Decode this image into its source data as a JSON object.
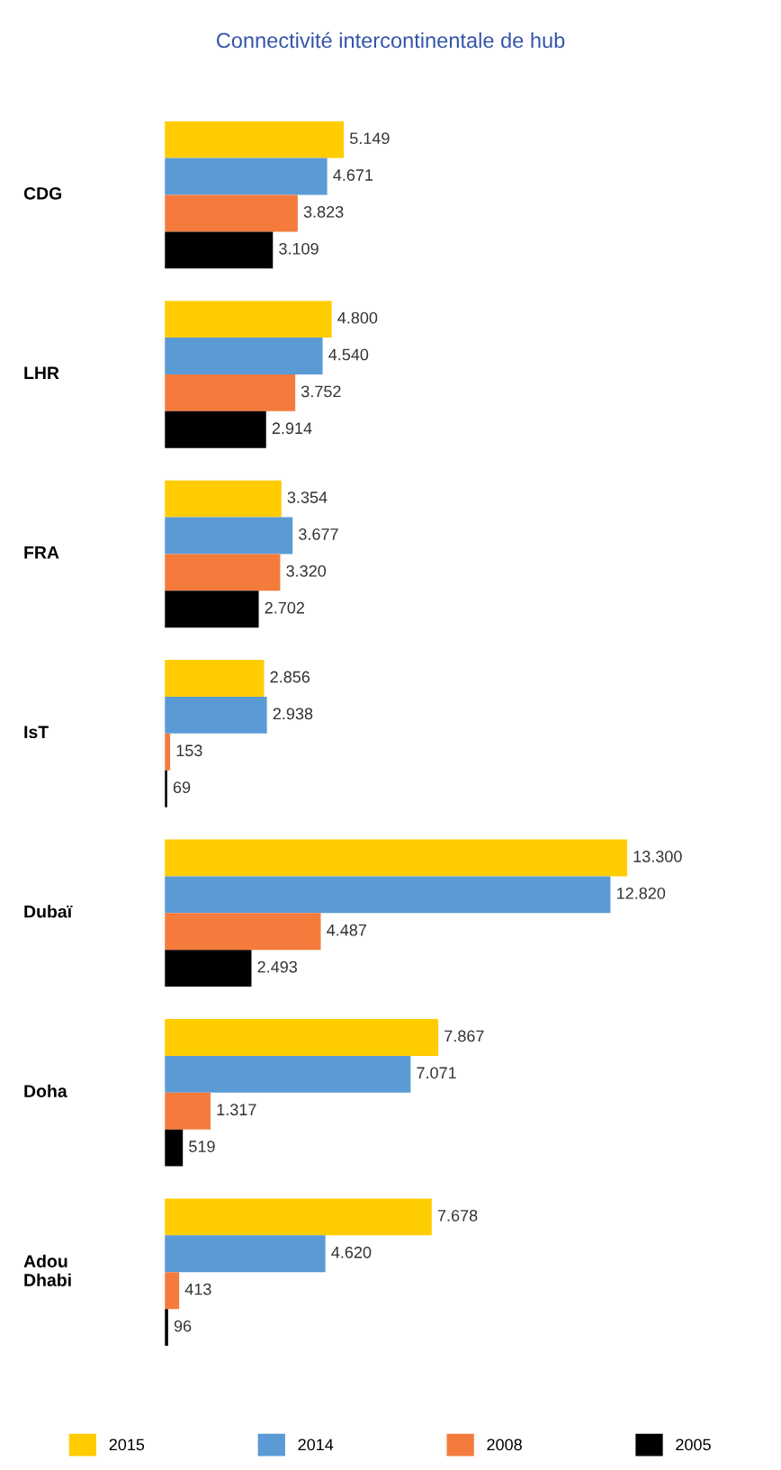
{
  "chart_data": {
    "type": "bar",
    "orientation": "horizontal",
    "title": "Connectivité intercontinentale de hub",
    "categories": [
      "CDG",
      "LHR",
      "FRA",
      "IsT",
      "Dubaï",
      "Doha",
      "Adou\nDhabi"
    ],
    "series": [
      {
        "name": "2015",
        "color": "#ffcc00",
        "values": [
          5149,
          4800,
          3354,
          2856,
          13300,
          7867,
          7678
        ],
        "value_labels": [
          "5.149",
          "4.800",
          "3.354",
          "2.856",
          "13.300",
          "7.867",
          "7.678"
        ]
      },
      {
        "name": "2014",
        "color": "#5b9bd5",
        "values": [
          4671,
          4540,
          3677,
          2938,
          12820,
          7071,
          4620
        ],
        "value_labels": [
          "4.671",
          "4.540",
          "3.677",
          "2.938",
          "12.820",
          "7.071",
          "4.620"
        ]
      },
      {
        "name": "2008",
        "color": "#f47b3c",
        "values": [
          3823,
          3752,
          3320,
          153,
          4487,
          1317,
          413
        ],
        "value_labels": [
          "3.823",
          "3.752",
          "3.320",
          "153",
          "4.487",
          "1.317",
          "413"
        ]
      },
      {
        "name": "2005",
        "color": "#000000",
        "values": [
          3109,
          2914,
          2702,
          69,
          2493,
          519,
          96
        ],
        "value_labels": [
          "3.109",
          "2.914",
          "2.702",
          "69",
          "2.493",
          "519",
          "96"
        ]
      }
    ],
    "legend": "bottom"
  }
}
